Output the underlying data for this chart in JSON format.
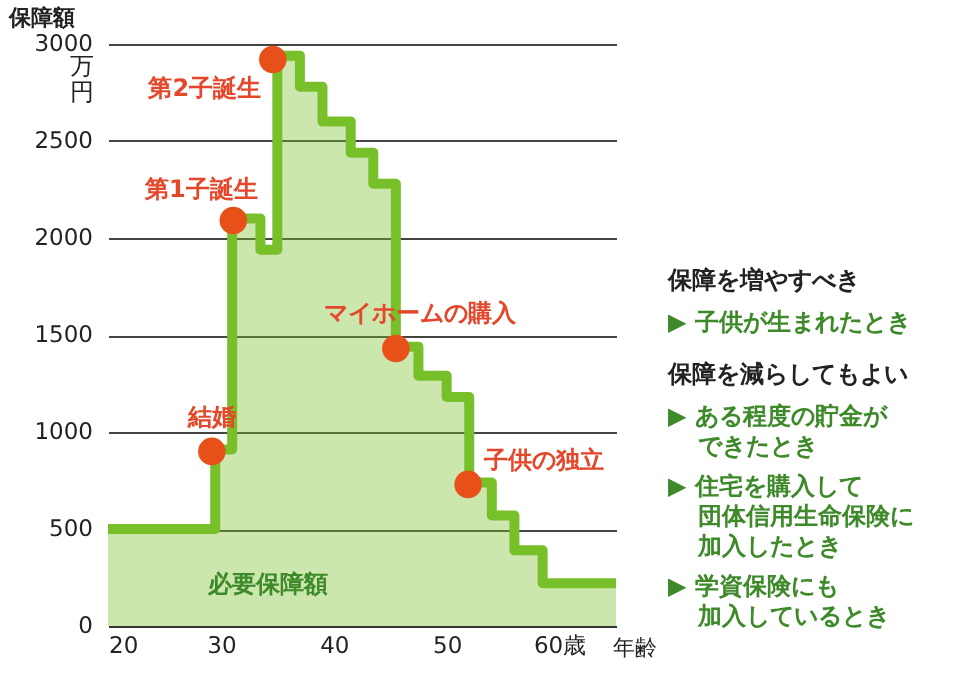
{
  "chart_data": {
    "type": "step",
    "ylabel": "保障額",
    "xlabel": "年齢",
    "xlim": [
      20,
      65
    ],
    "xticks": [
      20,
      30,
      40,
      50,
      {
        "value": 60,
        "label": "60歳"
      }
    ],
    "ylim": [
      0,
      3000
    ],
    "yticks": [
      0,
      500,
      1000,
      1500,
      2000,
      2500,
      3000
    ],
    "grid": "y",
    "series": [
      {
        "name": "必要保障額",
        "type": "step",
        "color": "#78c02a",
        "x": [
          20,
          29.5,
          31,
          33.5,
          35,
          37,
          39,
          41.5,
          43.5,
          45.5,
          47.5,
          50,
          52,
          54,
          56,
          58.5,
          65
        ],
        "values": [
          500,
          910,
          2100,
          1940,
          2940,
          2780,
          2600,
          2440,
          2280,
          1440,
          1290,
          1180,
          740,
          570,
          390,
          220,
          220
        ]
      },
      {
        "type": "scatter",
        "color": "#e8501a",
        "x": [
          29.2,
          31.1,
          34.6,
          45.5,
          51.9
        ],
        "values": [
          900,
          2090,
          2920,
          1430,
          730
        ]
      }
    ],
    "annotations": [
      {
        "text": "結婚",
        "x": 29.2,
        "y": 900
      },
      {
        "text": "第1子誕生",
        "x": 31.1,
        "y": 2090
      },
      {
        "text": "第2子誕生",
        "x": 34.6,
        "y": 2920
      },
      {
        "text": "マイホームの購入",
        "x": 45.5,
        "y": 1430
      },
      {
        "text": "子供の独立",
        "x": 51.9,
        "y": 730
      },
      "万円",
      "保障を増やすべき",
      "▶ 子供が生まれたとき",
      "保障を減らしてもよい",
      "▶ ある程度の貯金が",
      "できたとき",
      "▶ 住宅を購入して",
      "団体信用生命保険に",
      "加入したとき",
      "▶ 学資保険にも",
      "加入しているとき"
    ]
  }
}
